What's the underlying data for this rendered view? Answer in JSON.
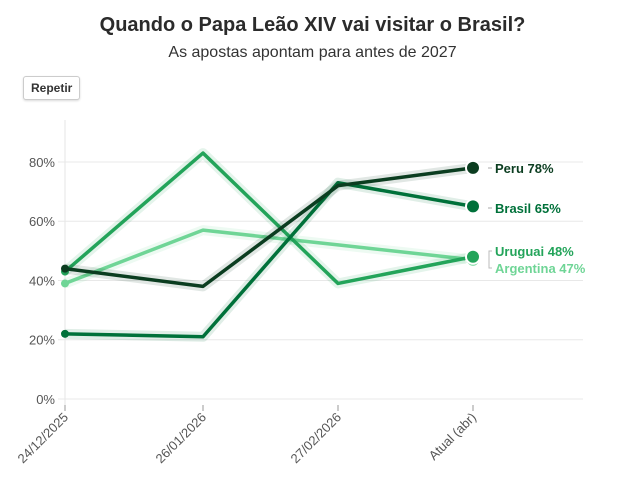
{
  "header": {
    "title": "Quando o Papa Leão XIV vai visitar o Brasil?",
    "subtitle": "As apostas apontam para antes de 2027",
    "replay_label": "Repetir"
  },
  "chart_data": {
    "type": "line",
    "title": "Quando o Papa Leão XIV vai visitar o Brasil?",
    "subtitle": "As apostas apontam para antes de 2027",
    "categories": [
      "24/12/2025",
      "26/01/2026",
      "27/02/2026",
      "Atual (abr)"
    ],
    "ylim": [
      0,
      85
    ],
    "yticks": [
      0,
      20,
      40,
      60,
      80
    ],
    "ytick_labels": [
      "0%",
      "20%",
      "40%",
      "60%",
      "80%"
    ],
    "grid": true,
    "series": [
      {
        "name": "Peru",
        "values": [
          44,
          38,
          72,
          78
        ],
        "color": "#0b3d20",
        "end_label": "Peru 78%"
      },
      {
        "name": "Brasil",
        "values": [
          22,
          21,
          73,
          65
        ],
        "color": "#00713a",
        "end_label": "Brasil 65%"
      },
      {
        "name": "Uruguai",
        "values": [
          43,
          83,
          39,
          48
        ],
        "color": "#23a45a",
        "end_label": "Uruguai 48%"
      },
      {
        "name": "Argentina",
        "values": [
          39,
          57,
          52,
          47
        ],
        "color": "#6fd596",
        "end_label": "Argentina 47%"
      }
    ]
  }
}
